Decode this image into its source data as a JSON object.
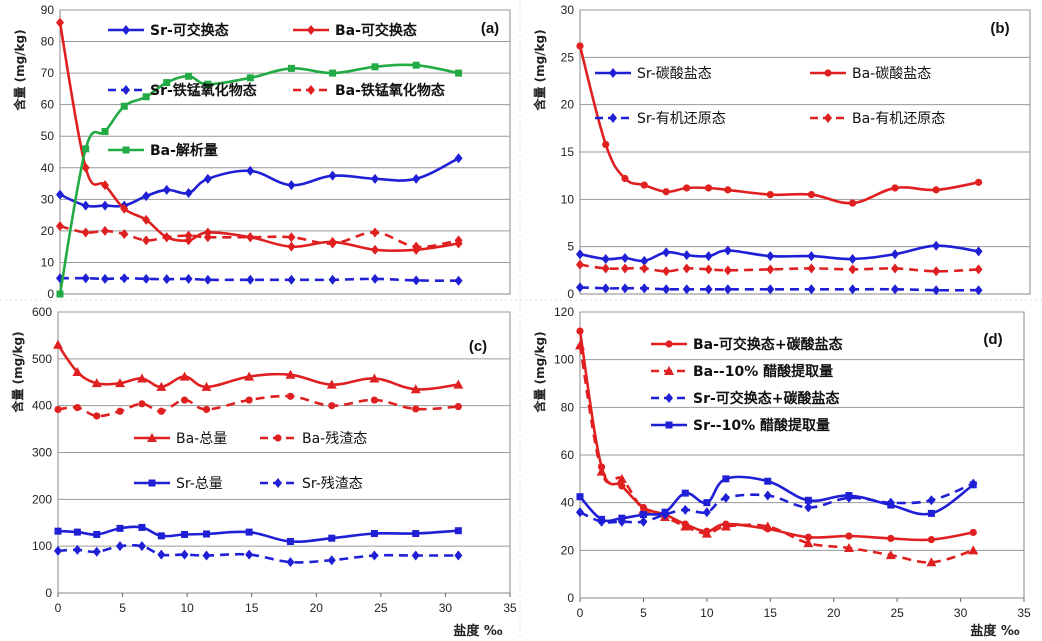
{
  "chart_data": [
    {
      "id": "a",
      "type": "line",
      "panel_label": "(a)",
      "ylabel": "含量 (mg/kg)",
      "xlabel": "",
      "xlim": [
        0,
        35
      ],
      "ylim": [
        0,
        90
      ],
      "yticks": [
        0,
        10,
        20,
        30,
        40,
        50,
        60,
        70,
        80,
        90
      ],
      "xticks": [],
      "grid": "horizontal",
      "series": [
        {
          "name": "Sr-可交换态",
          "color": "#1f1fd6",
          "dash": "solid",
          "marker": "diamond",
          "x": [
            0,
            2,
            3.5,
            5,
            6.7,
            8.3,
            10,
            11.5,
            14.8,
            18,
            21.2,
            24.5,
            27.7,
            31
          ],
          "y": [
            31.5,
            28,
            28,
            28,
            31,
            33,
            32,
            36.5,
            39,
            34.5,
            37.5,
            36.5,
            36.5,
            43
          ]
        },
        {
          "name": "Ba-可交换态",
          "color": "#e02020",
          "dash": "solid",
          "marker": "diamond",
          "x": [
            0,
            2,
            3.5,
            5,
            6.7,
            8.3,
            10,
            11.5,
            14.8,
            18,
            21.2,
            24.5,
            27.7,
            31
          ],
          "y": [
            86,
            40,
            34.5,
            27,
            23.5,
            18,
            17,
            19.5,
            18,
            15,
            16.5,
            14,
            14,
            16
          ]
        },
        {
          "name": "Sr-铁锰氧化物态",
          "color": "#1f1fd6",
          "dash": "dashed",
          "marker": "diamond",
          "x": [
            0,
            2,
            3.5,
            5,
            6.7,
            8.3,
            10,
            11.5,
            14.8,
            18,
            21.2,
            24.5,
            27.7,
            31
          ],
          "y": [
            5,
            5,
            4.8,
            5,
            4.8,
            4.7,
            4.8,
            4.5,
            4.5,
            4.5,
            4.5,
            4.8,
            4.3,
            4.2
          ]
        },
        {
          "name": "Ba-铁锰氧化物态",
          "color": "#e02020",
          "dash": "dashed",
          "marker": "diamond",
          "x": [
            0,
            2,
            3.5,
            5,
            6.7,
            8.3,
            10,
            11.5,
            14.8,
            18,
            21.2,
            24.5,
            27.7,
            31
          ],
          "y": [
            21.5,
            19.5,
            20,
            19,
            17,
            18,
            18.5,
            18,
            18,
            18,
            16,
            19.5,
            15,
            17
          ]
        },
        {
          "name": "Ba-解析量",
          "color": "#22aa44",
          "dash": "solid",
          "marker": "square",
          "x": [
            0,
            2,
            3.5,
            5,
            6.7,
            8.3,
            10,
            11.5,
            14.8,
            18,
            21.2,
            24.5,
            27.7,
            31
          ],
          "y": [
            0,
            46,
            51.5,
            59.5,
            62.5,
            67,
            69,
            66.5,
            68.5,
            71.5,
            70,
            72,
            72.5,
            70
          ]
        }
      ]
    },
    {
      "id": "b",
      "type": "line",
      "panel_label": "(b)",
      "ylabel": "含量 (mg/kg)",
      "xlabel": "",
      "xlim": [
        0,
        35
      ],
      "ylim": [
        0,
        30
      ],
      "yticks": [
        0,
        5,
        10,
        15,
        20,
        25,
        30
      ],
      "xticks": [],
      "grid": "horizontal",
      "series": [
        {
          "name": "Sr-碳酸盐态",
          "color": "#1f1fd6",
          "dash": "solid",
          "marker": "diamond",
          "x": [
            0,
            2,
            3.5,
            5,
            6.7,
            8.3,
            10,
            11.5,
            14.8,
            18,
            21.2,
            24.5,
            27.7,
            31
          ],
          "y": [
            4.2,
            3.7,
            3.8,
            3.5,
            4.4,
            4.1,
            4.0,
            4.6,
            4.0,
            4.0,
            3.7,
            4.2,
            5.1,
            4.5
          ]
        },
        {
          "name": "Ba-碳酸盐态",
          "color": "#e02020",
          "dash": "solid",
          "marker": "circle",
          "x": [
            0,
            2,
            3.5,
            5,
            6.7,
            8.3,
            10,
            11.5,
            14.8,
            18,
            21.2,
            24.5,
            27.7,
            31
          ],
          "y": [
            26.2,
            15.8,
            12.2,
            11.5,
            10.8,
            11.2,
            11.2,
            11.0,
            10.5,
            10.5,
            9.6,
            11.2,
            11.0,
            11.8
          ]
        },
        {
          "name": "Sr-有机还原态",
          "color": "#1f1fd6",
          "dash": "dashed",
          "marker": "diamond",
          "x": [
            0,
            2,
            3.5,
            5,
            6.7,
            8.3,
            10,
            11.5,
            14.8,
            18,
            21.2,
            24.5,
            27.7,
            31
          ],
          "y": [
            0.7,
            0.6,
            0.6,
            0.6,
            0.5,
            0.5,
            0.5,
            0.5,
            0.5,
            0.5,
            0.5,
            0.5,
            0.4,
            0.4
          ]
        },
        {
          "name": "Ba-有机还原态",
          "color": "#e02020",
          "dash": "dashed",
          "marker": "diamond",
          "x": [
            0,
            2,
            3.5,
            5,
            6.7,
            8.3,
            10,
            11.5,
            14.8,
            18,
            21.2,
            24.5,
            27.7,
            31
          ],
          "y": [
            3.1,
            2.7,
            2.7,
            2.7,
            2.4,
            2.7,
            2.6,
            2.5,
            2.6,
            2.7,
            2.6,
            2.7,
            2.4,
            2.6
          ]
        }
      ]
    },
    {
      "id": "c",
      "type": "line",
      "panel_label": "(c)",
      "ylabel": "含量 (mg/kg)",
      "xlabel": "盐度 ‰",
      "xlim": [
        0,
        35
      ],
      "ylim": [
        0,
        600
      ],
      "yticks": [
        0,
        100,
        200,
        300,
        400,
        500,
        600
      ],
      "xticks": [
        0,
        5,
        10,
        15,
        20,
        25,
        30,
        35
      ],
      "grid": "horizontal",
      "series": [
        {
          "name": "Ba-总量",
          "color": "#e02020",
          "dash": "solid",
          "marker": "triangle",
          "x": [
            0,
            1.5,
            3,
            4.8,
            6.5,
            8,
            9.8,
            11.5,
            14.8,
            18,
            21.2,
            24.5,
            27.7,
            31
          ],
          "y": [
            530,
            472,
            448,
            448,
            458,
            440,
            462,
            440,
            462,
            466,
            445,
            458,
            435,
            445
          ]
        },
        {
          "name": "Ba-残渣态",
          "color": "#e02020",
          "dash": "dashed",
          "marker": "circle",
          "x": [
            0,
            1.5,
            3,
            4.8,
            6.5,
            8,
            9.8,
            11.5,
            14.8,
            18,
            21.2,
            24.5,
            27.7,
            31
          ],
          "y": [
            392,
            396,
            378,
            388,
            404,
            388,
            412,
            392,
            412,
            420,
            400,
            412,
            393,
            398
          ]
        },
        {
          "name": "Sr-总量",
          "color": "#1f1fd6",
          "dash": "solid",
          "marker": "square",
          "x": [
            0,
            1.5,
            3,
            4.8,
            6.5,
            8,
            9.8,
            11.5,
            14.8,
            18,
            21.2,
            24.5,
            27.7,
            31
          ],
          "y": [
            132,
            130,
            125,
            138,
            140,
            122,
            125,
            126,
            130,
            110,
            117,
            127,
            127,
            133
          ]
        },
        {
          "name": "Sr-残渣态",
          "color": "#1f1fd6",
          "dash": "dashed",
          "marker": "diamond",
          "x": [
            0,
            1.5,
            3,
            4.8,
            6.5,
            8,
            9.8,
            11.5,
            14.8,
            18,
            21.2,
            24.5,
            27.7,
            31
          ],
          "y": [
            90,
            92,
            88,
            100,
            100,
            82,
            82,
            80,
            82,
            66,
            70,
            80,
            80,
            80
          ]
        }
      ]
    },
    {
      "id": "d",
      "type": "line",
      "panel_label": "(d)",
      "ylabel": "含量 (mg/kg)",
      "xlabel": "盐度 ‰",
      "xlim": [
        0,
        35
      ],
      "ylim": [
        0,
        120
      ],
      "yticks": [
        0,
        20,
        40,
        60,
        80,
        100,
        120
      ],
      "xticks": [
        0,
        5,
        10,
        15,
        20,
        25,
        30,
        35
      ],
      "grid": "horizontal",
      "series": [
        {
          "name": "Ba-可交换态+碳酸盐态",
          "color": "#e02020",
          "dash": "solid",
          "marker": "circle",
          "x": [
            0,
            1.7,
            3.3,
            5,
            6.7,
            8.3,
            10,
            11.5,
            14.8,
            18,
            21.2,
            24.5,
            27.7,
            31
          ],
          "y": [
            112,
            55,
            47,
            38,
            35,
            31,
            28,
            31,
            29,
            25.5,
            26,
            25,
            24.5,
            27.5
          ]
        },
        {
          "name": "Ba--10% 醋酸提取量",
          "color": "#e02020",
          "dash": "dashed",
          "marker": "triangle",
          "x": [
            0,
            1.7,
            3.3,
            5,
            6.7,
            8.3,
            10,
            11.5,
            14.8,
            18,
            21.2,
            24.5,
            27.7,
            31
          ],
          "y": [
            106,
            53,
            50,
            37,
            34,
            30,
            27,
            30,
            30,
            23,
            21,
            18,
            15,
            20
          ]
        },
        {
          "name": "Sr-可交换态+碳酸盐态",
          "color": "#1f1fd6",
          "dash": "dashed",
          "marker": "diamond",
          "x": [
            0,
            1.7,
            3.3,
            5,
            6.7,
            8.3,
            10,
            11.5,
            14.8,
            18,
            21.2,
            24.5,
            27.7,
            31
          ],
          "y": [
            36,
            32,
            32,
            32,
            35,
            37,
            36,
            42,
            43,
            38,
            42,
            40,
            41,
            48
          ]
        },
        {
          "name": "Sr--10% 醋酸提取量",
          "color": "#1f1fd6",
          "dash": "solid",
          "marker": "square",
          "x": [
            0,
            1.7,
            3.3,
            5,
            6.7,
            8.3,
            10,
            11.5,
            14.8,
            18,
            21.2,
            24.5,
            27.7,
            31
          ],
          "y": [
            42.5,
            33,
            33.5,
            35,
            36,
            44,
            40,
            50,
            49,
            41,
            43,
            39,
            35.5,
            47.5
          ]
        }
      ]
    }
  ]
}
